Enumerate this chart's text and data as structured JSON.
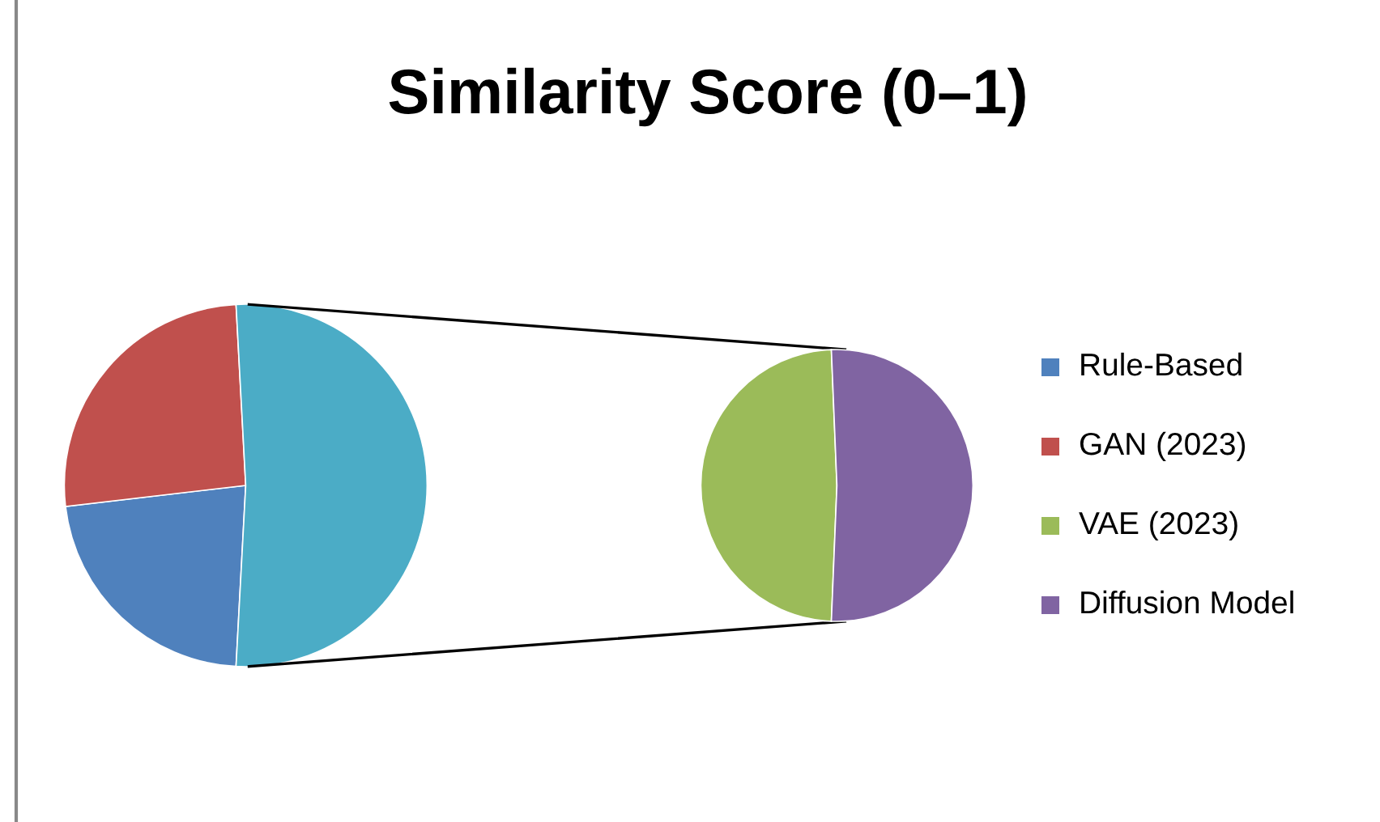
{
  "chart_data": [
    {
      "type": "pie",
      "title": "Similarity Score (0–1)",
      "categories": [
        "Rule-Based",
        "GAN (2023)",
        null
      ],
      "values": [
        22.3,
        26.0,
        51.7
      ],
      "colors": [
        "#4f81bd",
        "#c0504d",
        "#4bacc6"
      ],
      "legend": "right"
    },
    {
      "type": "pie",
      "categories": [
        "VAE (2023)",
        "Diffusion Model"
      ],
      "values": [
        48.7,
        51.3
      ],
      "colors": [
        "#9bbb59",
        "#8064a2"
      ],
      "legend": "right"
    }
  ]
}
